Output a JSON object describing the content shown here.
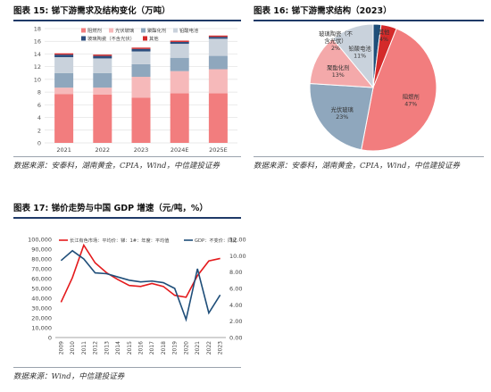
{
  "panels": {
    "fig15": {
      "title": "图表 15:  锑下游需求及结构变化（万吨）",
      "source": "数据来源：安泰科，湖南黄金，CPIA，Wind，中信建投证券"
    },
    "fig16": {
      "title": "图表 16:  锑下游需求结构（2023）",
      "source": "数据来源：安泰科，湖南黄金，CPIA，Wind，中信建投证券"
    },
    "fig17": {
      "title": "图表 17:  锑价走势与中国 GDP 增速（元/吨，%）",
      "source": "数据来源：Wind，中信建投证券"
    }
  },
  "colors": {
    "flame": "#f27d7e",
    "pv": "#f6b9ba",
    "pvc": "#8fa7bd",
    "battery": "#c9d2dc",
    "ceramic": "#2d4e7e",
    "other": "#d42a2a",
    "price": "#e41a1c",
    "gdp": "#1f4e79",
    "header_rule": "#1f3a68"
  },
  "chart_data": [
    {
      "type": "bar",
      "stacked": true,
      "categories": [
        "2021",
        "2022",
        "2023",
        "2024E",
        "2025E"
      ],
      "series": [
        {
          "name": "阻燃剂",
          "color": "#f27d7e",
          "values": [
            7.7,
            7.6,
            7.1,
            7.8,
            7.8
          ]
        },
        {
          "name": "光伏玻璃",
          "color": "#f6b9ba",
          "values": [
            1.0,
            1.1,
            3.3,
            3.5,
            3.8
          ]
        },
        {
          "name": "聚酯化剂",
          "color": "#8fa7bd",
          "values": [
            2.3,
            2.3,
            2.0,
            2.1,
            2.1
          ]
        },
        {
          "name": "铅酸电池",
          "color": "#c9d2dc",
          "values": [
            2.5,
            2.3,
            2.0,
            2.2,
            2.7
          ]
        },
        {
          "name": "玻璃陶瓷（不含光伏）",
          "color": "#2d4e7e",
          "values": [
            0.4,
            0.4,
            0.4,
            0.3,
            0.3
          ]
        },
        {
          "name": "其他",
          "color": "#d42a2a",
          "values": [
            0.2,
            0.2,
            0.2,
            0.2,
            0.2
          ]
        }
      ],
      "ylim": [
        0,
        18
      ],
      "yticks": [
        0,
        2,
        4,
        6,
        8,
        10,
        12,
        14,
        16,
        18
      ],
      "legend": "top",
      "grid": true
    },
    {
      "type": "pie",
      "slices": [
        {
          "name": "阻燃剂",
          "value": 47,
          "label": "47%",
          "color": "#f27d7e"
        },
        {
          "name": "光伏玻璃",
          "value": 23,
          "label": "23%",
          "color": "#8fa7bd"
        },
        {
          "name": "聚酯化剂",
          "value": 13,
          "label": "13%",
          "color": "#f4a9aa"
        },
        {
          "name": "铅酸电池",
          "value": 11,
          "label": "11%",
          "color": "#c9d2dc"
        },
        {
          "name": "玻璃陶瓷（不含光伏）",
          "value": 2,
          "label": "2%",
          "color": "#1f4e79"
        },
        {
          "name": "其他",
          "value": 4,
          "label": "4%",
          "color": "#d42a2a"
        }
      ]
    },
    {
      "type": "line",
      "x": [
        "2009",
        "2010",
        "2011",
        "2012",
        "2013",
        "2014",
        "2015",
        "2016",
        "2017",
        "2018",
        "2019",
        "2020",
        "2021",
        "2022",
        "2023"
      ],
      "series": [
        {
          "name": "长江有色市场：平均价：锑：1#：年度：平均值",
          "axis": "left",
          "color": "#e41a1c",
          "values": [
            36000,
            61000,
            94000,
            76000,
            66000,
            59000,
            53000,
            52000,
            55000,
            52000,
            43000,
            41000,
            63000,
            78000,
            80500
          ]
        },
        {
          "name": "GDP：不变价：同比",
          "axis": "right",
          "color": "#1f4e79",
          "values": [
            9.4,
            10.6,
            9.6,
            7.9,
            7.8,
            7.4,
            7.0,
            6.8,
            6.9,
            6.7,
            6.0,
            2.2,
            8.4,
            3.0,
            5.2
          ]
        }
      ],
      "ylim_left": [
        0,
        100000
      ],
      "yticks_left": [
        "0",
        "10,000",
        "20,000",
        "30,000",
        "40,000",
        "50,000",
        "60,000",
        "70,000",
        "80,000",
        "90,000",
        "100,000"
      ],
      "ylim_right": [
        0,
        12
      ],
      "yticks_right": [
        "0.00",
        "2.00",
        "4.00",
        "6.00",
        "8.00",
        "10.00",
        "12.00"
      ],
      "legend": "top",
      "grid": false
    }
  ]
}
